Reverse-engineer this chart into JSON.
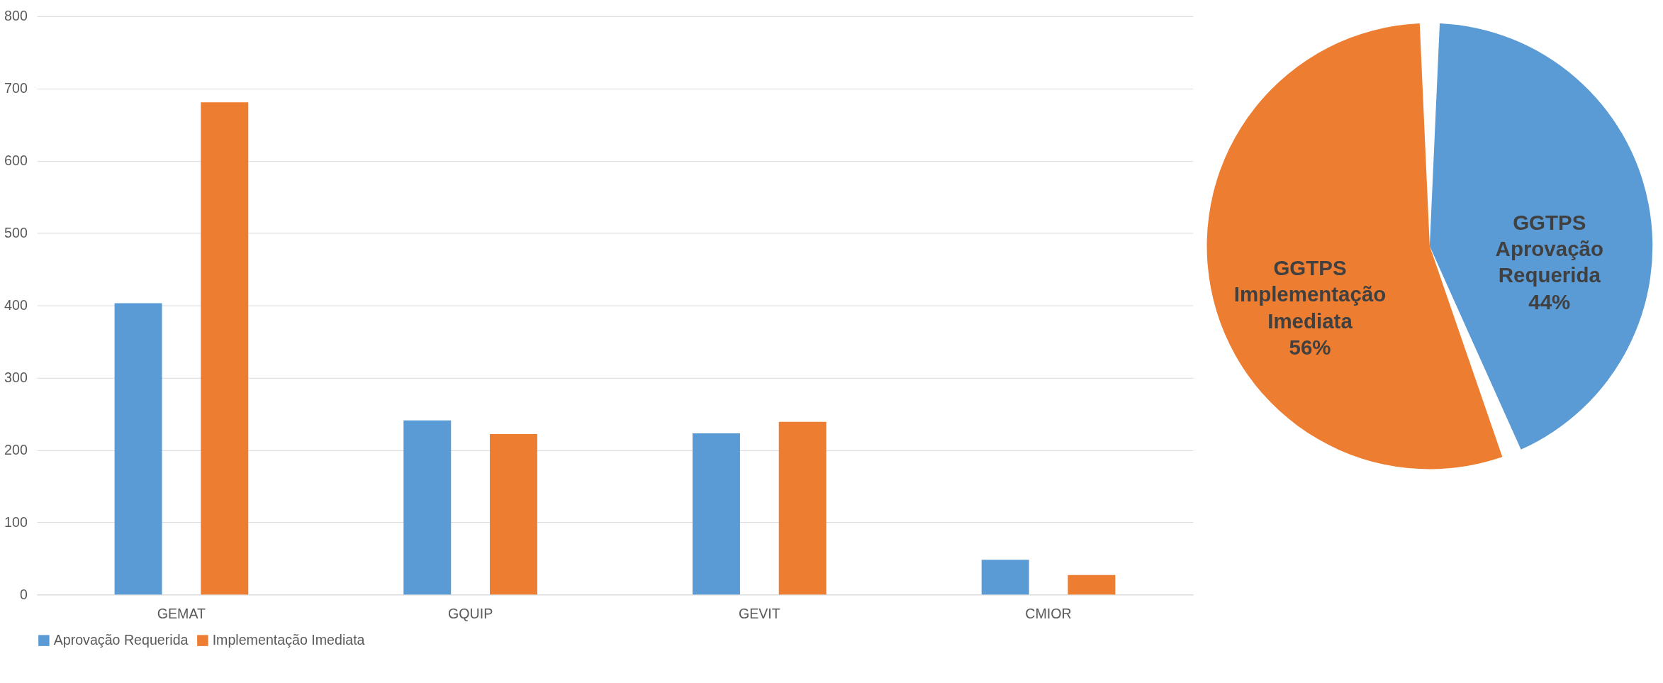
{
  "chart_data": [
    {
      "type": "bar",
      "categories": [
        "GEMAT",
        "GQUIP",
        "GEVIT",
        "CMIOR"
      ],
      "series": [
        {
          "name": "Aprovação Requerida",
          "color": "#5b9bd5",
          "values": [
            403,
            241,
            223,
            48
          ]
        },
        {
          "name": "Implementação Imediata",
          "color": "#ed7d31",
          "values": [
            681,
            222,
            239,
            27
          ]
        }
      ],
      "ylim": [
        0,
        800
      ],
      "yticks": [
        0,
        100,
        200,
        300,
        400,
        500,
        600,
        700,
        800
      ],
      "grid": "y",
      "legend": "bottom"
    },
    {
      "type": "pie",
      "categories": [
        "GGTPS Aprovação Requerida",
        "GGTPS Implementação Imediata"
      ],
      "values": [
        44,
        56
      ],
      "colors": [
        "#5b9bd5",
        "#ed7d31"
      ],
      "value_labels": [
        "44%",
        "56%"
      ]
    }
  ]
}
